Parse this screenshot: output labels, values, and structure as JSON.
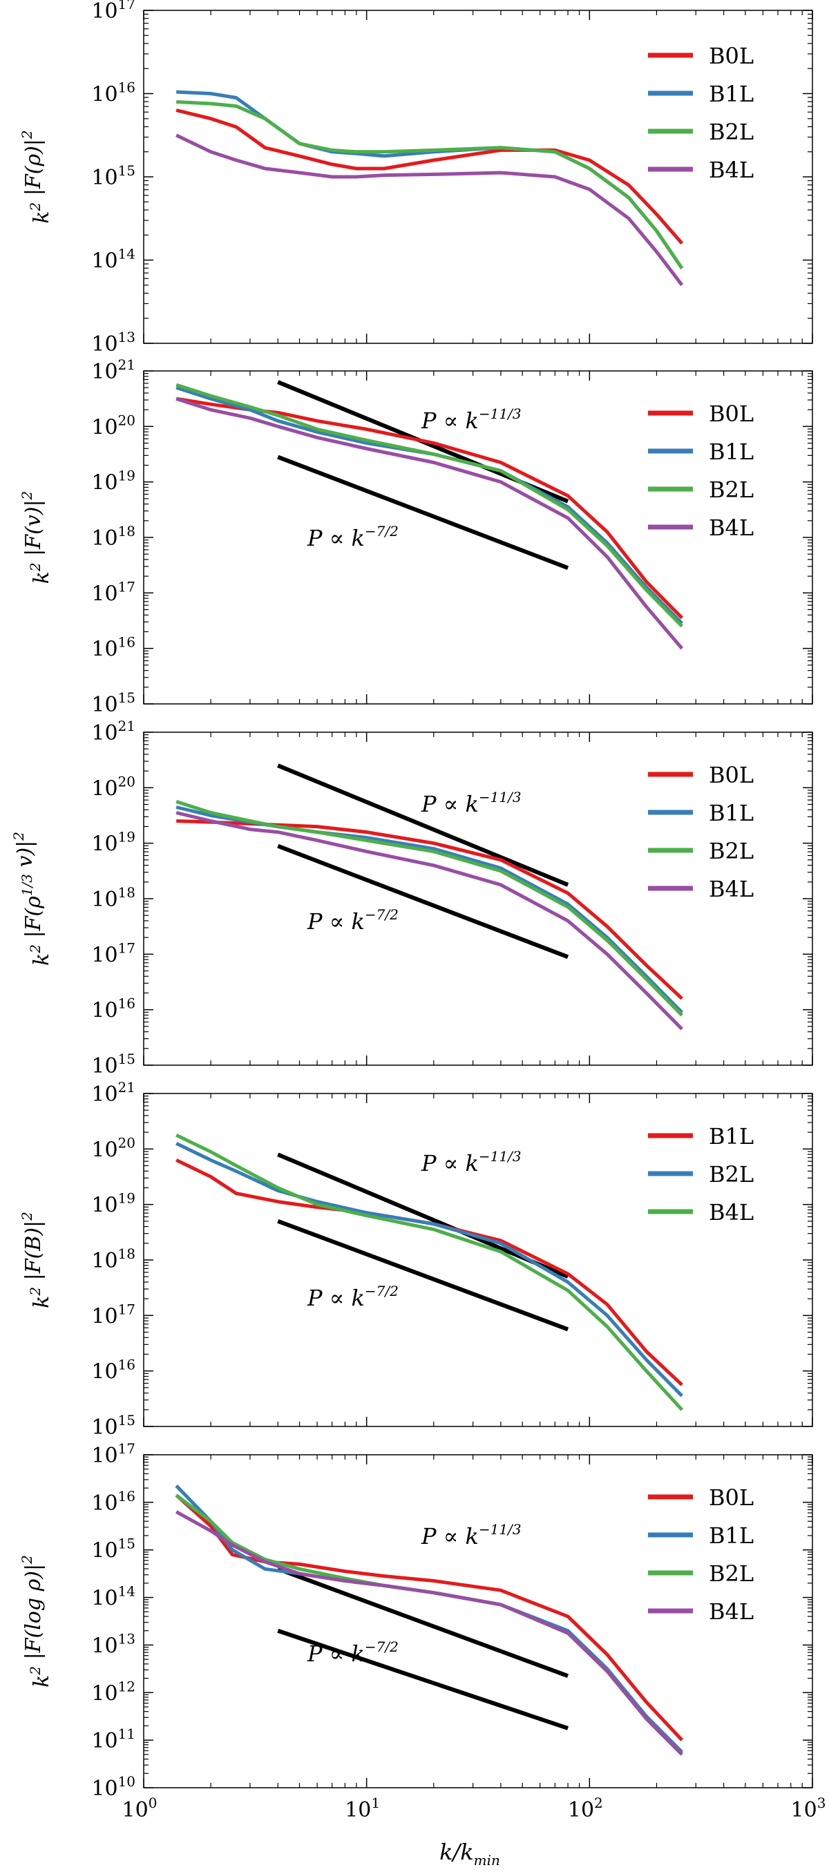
{
  "figure": {
    "x_axis_label": "k/k_min"
  },
  "colors": {
    "red": "#e41a1c",
    "blue": "#377eb8",
    "green": "#4daf4a",
    "purple": "#984ea3",
    "black": "#000000"
  },
  "chart_data": [
    {
      "type": "line",
      "ylabel": "k^2 |F(ρ)|^2",
      "xlim": [
        1,
        1000
      ],
      "ylim": [
        13,
        17
      ],
      "xscale": "log",
      "yscale": "log",
      "xticks": [
        "10^0",
        "10^1",
        "10^2",
        "10^3"
      ],
      "yticks": [
        "10^13",
        "10^14",
        "10^15",
        "10^16",
        "10^17"
      ],
      "legend": "top-right",
      "series": [
        {
          "name": "B0L",
          "color": "#e41a1c",
          "x": [
            1.4,
            2,
            2.6,
            3.5,
            5,
            7,
            9,
            12,
            20,
            40,
            70,
            100,
            150,
            200,
            260
          ],
          "log10y": [
            15.8,
            15.7,
            15.6,
            15.35,
            15.25,
            15.15,
            15.1,
            15.1,
            15.2,
            15.32,
            15.32,
            15.2,
            14.9,
            14.55,
            14.2
          ]
        },
        {
          "name": "B1L",
          "color": "#377eb8",
          "x": [
            1.4,
            2,
            2.6,
            3.5,
            5,
            7,
            9,
            12,
            20,
            40,
            70,
            100,
            150,
            200,
            260
          ],
          "log10y": [
            16.02,
            16.0,
            15.95,
            15.7,
            15.4,
            15.3,
            15.28,
            15.25,
            15.3,
            15.35,
            15.3,
            15.1,
            14.75,
            14.35,
            13.9
          ]
        },
        {
          "name": "B2L",
          "color": "#4daf4a",
          "x": [
            1.4,
            2,
            2.6,
            3.5,
            5,
            7,
            9,
            12,
            20,
            40,
            70,
            100,
            150,
            200,
            260
          ],
          "log10y": [
            15.9,
            15.88,
            15.85,
            15.7,
            15.4,
            15.32,
            15.3,
            15.3,
            15.32,
            15.35,
            15.3,
            15.1,
            14.75,
            14.35,
            13.9
          ]
        },
        {
          "name": "B4L",
          "color": "#984ea3",
          "x": [
            1.4,
            2,
            2.6,
            3.5,
            5,
            7,
            9,
            12,
            20,
            40,
            70,
            100,
            150,
            200,
            260
          ],
          "log10y": [
            15.5,
            15.3,
            15.2,
            15.1,
            15.05,
            15.0,
            15.0,
            15.02,
            15.03,
            15.05,
            15.0,
            14.85,
            14.5,
            14.1,
            13.7
          ]
        }
      ]
    },
    {
      "type": "line",
      "ylabel": "k^2 |F(v)|^2",
      "xlim": [
        1,
        1000
      ],
      "ylim": [
        15,
        21
      ],
      "xscale": "log",
      "yscale": "log",
      "xticks": [
        "10^0",
        "10^1",
        "10^2",
        "10^3"
      ],
      "yticks": [
        "10^15",
        "10^16",
        "10^17",
        "10^18",
        "10^19",
        "10^20",
        "10^21"
      ],
      "legend": "top-right",
      "series": [
        {
          "name": "B0L",
          "color": "#e41a1c",
          "x": [
            1.4,
            2,
            3,
            4,
            6,
            10,
            20,
            40,
            80,
            120,
            180,
            260
          ],
          "log10y": [
            20.5,
            20.4,
            20.3,
            20.25,
            20.1,
            19.95,
            19.7,
            19.35,
            18.75,
            18.1,
            17.2,
            16.55
          ]
        },
        {
          "name": "B1L",
          "color": "#377eb8",
          "x": [
            1.4,
            2,
            3,
            4,
            6,
            10,
            20,
            40,
            80,
            120,
            180,
            260
          ],
          "log10y": [
            20.7,
            20.5,
            20.3,
            20.1,
            19.9,
            19.7,
            19.5,
            19.2,
            18.55,
            17.9,
            17.1,
            16.45
          ]
        },
        {
          "name": "B2L",
          "color": "#4daf4a",
          "x": [
            1.4,
            2,
            3,
            4,
            6,
            10,
            20,
            40,
            80,
            120,
            180,
            260
          ],
          "log10y": [
            20.75,
            20.55,
            20.35,
            20.2,
            19.95,
            19.75,
            19.5,
            19.2,
            18.5,
            17.85,
            17.05,
            16.4
          ]
        },
        {
          "name": "B4L",
          "color": "#984ea3",
          "x": [
            1.4,
            2,
            3,
            4,
            6,
            10,
            20,
            40,
            80,
            120,
            180,
            260
          ],
          "log10y": [
            20.5,
            20.3,
            20.15,
            20.0,
            19.8,
            19.6,
            19.35,
            19.0,
            18.35,
            17.65,
            16.75,
            16.0
          ]
        }
      ],
      "reference_lines": [
        {
          "label": "P ∝ k^{−11/3}",
          "slope": "-11/3",
          "x": [
            4,
            80
          ],
          "log10y": [
            20.8,
            18.65
          ]
        },
        {
          "label": "P ∝ k^{−7/2}",
          "slope": "-7/2",
          "x": [
            4,
            80
          ],
          "log10y": [
            19.45,
            17.45
          ]
        }
      ]
    },
    {
      "type": "line",
      "ylabel": "k^2 |F(ρ^{1/3} v)|^2",
      "xlim": [
        1,
        1000
      ],
      "ylim": [
        15,
        21
      ],
      "xscale": "log",
      "yscale": "log",
      "xticks": [
        "10^0",
        "10^1",
        "10^2",
        "10^3"
      ],
      "yticks": [
        "10^15",
        "10^16",
        "10^17",
        "10^18",
        "10^19",
        "10^20",
        "10^21"
      ],
      "legend": "top-right",
      "series": [
        {
          "name": "B0L",
          "color": "#e41a1c",
          "x": [
            1.4,
            2,
            3,
            4,
            6,
            10,
            20,
            40,
            80,
            120,
            180,
            260
          ],
          "log10y": [
            19.4,
            19.38,
            19.35,
            19.33,
            19.3,
            19.2,
            19.0,
            18.7,
            18.1,
            17.5,
            16.8,
            16.2
          ]
        },
        {
          "name": "B1L",
          "color": "#377eb8",
          "x": [
            1.4,
            2,
            3,
            4,
            6,
            10,
            20,
            40,
            80,
            120,
            180,
            260
          ],
          "log10y": [
            19.65,
            19.5,
            19.38,
            19.3,
            19.2,
            19.1,
            18.9,
            18.55,
            17.9,
            17.3,
            16.6,
            15.95
          ]
        },
        {
          "name": "B2L",
          "color": "#4daf4a",
          "x": [
            1.4,
            2,
            3,
            4,
            6,
            10,
            20,
            40,
            80,
            120,
            180,
            260
          ],
          "log10y": [
            19.75,
            19.55,
            19.4,
            19.3,
            19.2,
            19.05,
            18.85,
            18.5,
            17.85,
            17.25,
            16.55,
            15.9
          ]
        },
        {
          "name": "B4L",
          "color": "#984ea3",
          "x": [
            1.4,
            2,
            3,
            4,
            6,
            10,
            20,
            40,
            80,
            120,
            180,
            260
          ],
          "log10y": [
            19.55,
            19.4,
            19.25,
            19.2,
            19.05,
            18.85,
            18.6,
            18.25,
            17.6,
            17.0,
            16.3,
            15.65
          ]
        }
      ],
      "reference_lines": [
        {
          "label": "P ∝ k^{−11/3}",
          "slope": "-11/3",
          "x": [
            4,
            80
          ],
          "log10y": [
            20.4,
            18.25
          ]
        },
        {
          "label": "P ∝ k^{−7/2}",
          "slope": "-7/2",
          "x": [
            4,
            80
          ],
          "log10y": [
            18.95,
            16.95
          ]
        }
      ]
    },
    {
      "type": "line",
      "ylabel": "k^2 |F(B)|^2",
      "xlim": [
        1,
        1000
      ],
      "ylim": [
        15,
        21
      ],
      "xscale": "log",
      "yscale": "log",
      "xticks": [
        "10^0",
        "10^1",
        "10^2",
        "10^3"
      ],
      "yticks": [
        "10^15",
        "10^16",
        "10^17",
        "10^18",
        "10^19",
        "10^20",
        "10^21"
      ],
      "legend": "top-right",
      "series": [
        {
          "name": "B1L",
          "color": "#e41a1c",
          "x": [
            1.4,
            2,
            2.6,
            4,
            6,
            10,
            20,
            40,
            80,
            120,
            180,
            260
          ],
          "log10y": [
            19.8,
            19.5,
            19.2,
            19.05,
            18.95,
            18.85,
            18.65,
            18.35,
            17.75,
            17.2,
            16.35,
            15.75
          ]
        },
        {
          "name": "B2L",
          "color": "#377eb8",
          "x": [
            1.4,
            2,
            2.6,
            4,
            6,
            10,
            20,
            40,
            80,
            120,
            180,
            260
          ],
          "log10y": [
            20.1,
            19.8,
            19.6,
            19.25,
            19.05,
            18.85,
            18.65,
            18.3,
            17.6,
            17.0,
            16.2,
            15.55
          ]
        },
        {
          "name": "B4L",
          "color": "#4daf4a",
          "x": [
            1.4,
            2,
            2.6,
            4,
            6,
            10,
            20,
            40,
            80,
            120,
            180,
            260
          ],
          "log10y": [
            20.25,
            19.95,
            19.7,
            19.3,
            19.0,
            18.8,
            18.55,
            18.15,
            17.45,
            16.8,
            16.0,
            15.3
          ]
        }
      ],
      "reference_lines": [
        {
          "label": "P ∝ k^{−11/3}",
          "slope": "-11/3",
          "x": [
            4,
            80
          ],
          "log10y": [
            19.9,
            17.7
          ]
        },
        {
          "label": "P ∝ k^{−7/2}",
          "slope": "-7/2",
          "x": [
            4,
            80
          ],
          "log10y": [
            18.7,
            16.75
          ]
        }
      ]
    },
    {
      "type": "line",
      "ylabel": "k^2 |F(log ρ)|^2",
      "xlim": [
        1,
        1000
      ],
      "ylim": [
        10,
        17
      ],
      "xscale": "log",
      "yscale": "log",
      "xticks": [
        "10^0",
        "10^1",
        "10^2",
        "10^3"
      ],
      "yticks": [
        "10^10",
        "10^11",
        "10^12",
        "10^13",
        "10^14",
        "10^15",
        "10^16",
        "10^17"
      ],
      "legend": "top-right",
      "xlabel": "k/k_min",
      "series": [
        {
          "name": "B0L",
          "color": "#e41a1c",
          "x": [
            1.4,
            2,
            2.5,
            3.5,
            5,
            8,
            12,
            20,
            40,
            80,
            120,
            180,
            260
          ],
          "log10y": [
            16.15,
            15.5,
            14.9,
            14.75,
            14.7,
            14.55,
            14.45,
            14.35,
            14.15,
            13.6,
            12.8,
            11.8,
            11.0
          ]
        },
        {
          "name": "B1L",
          "color": "#377eb8",
          "x": [
            1.4,
            2,
            2.5,
            3.5,
            5,
            8,
            12,
            20,
            40,
            80,
            120,
            180,
            260
          ],
          "log10y": [
            16.35,
            15.6,
            15.0,
            14.6,
            14.5,
            14.35,
            14.25,
            14.1,
            13.85,
            13.3,
            12.5,
            11.5,
            10.75
          ]
        },
        {
          "name": "B2L",
          "color": "#4daf4a",
          "x": [
            1.4,
            2,
            2.5,
            3.5,
            5,
            8,
            12,
            20,
            40,
            80,
            120,
            180,
            260
          ],
          "log10y": [
            16.15,
            15.6,
            15.15,
            14.8,
            14.6,
            14.4,
            14.25,
            14.1,
            13.85,
            13.25,
            12.45,
            11.45,
            10.7
          ]
        },
        {
          "name": "B4L",
          "color": "#984ea3",
          "x": [
            1.4,
            2,
            2.5,
            3.5,
            5,
            8,
            12,
            20,
            40,
            80,
            120,
            180,
            260
          ],
          "log10y": [
            15.8,
            15.4,
            15.1,
            14.75,
            14.5,
            14.35,
            14.25,
            14.1,
            13.85,
            13.25,
            12.45,
            11.45,
            10.7
          ]
        }
      ],
      "reference_lines": [
        {
          "label": "P ∝ k^{−11/3}",
          "slope": "-11/3",
          "x": [
            4,
            80
          ],
          "log10y": [
            14.6,
            12.35
          ]
        },
        {
          "label": "P ∝ k^{−7/2}",
          "slope": "-7/2",
          "x": [
            4,
            80
          ],
          "log10y": [
            13.3,
            11.25
          ]
        }
      ]
    }
  ]
}
